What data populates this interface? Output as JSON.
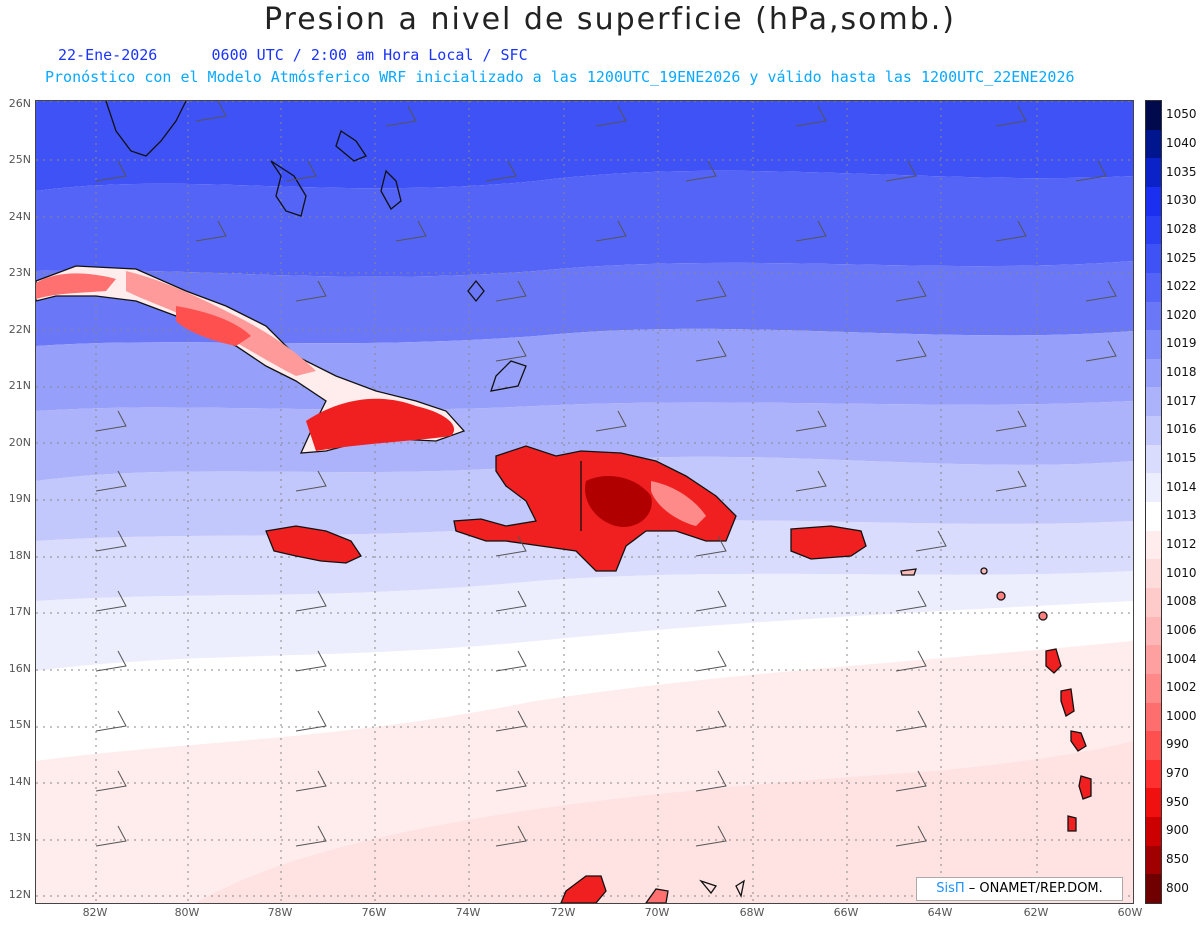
{
  "title": "Presion a nivel de superficie (hPa,somb.)",
  "subtitle_line1_date": "22-Ene-2026",
  "subtitle_line1_time": "0600 UTC / 2:00 am Hora Local / SFC",
  "subtitle_line2": "Pronóstico con el Modelo Atmósferico WRF inicializado a las 1200UTC_19ENE2026 y válido hasta las  1200UTC_22ENE2026",
  "lat_labels": [
    "26N",
    "25N",
    "24N",
    "23N",
    "22N",
    "21N",
    "20N",
    "19N",
    "18N",
    "17N",
    "16N",
    "15N",
    "14N",
    "13N",
    "12N"
  ],
  "lon_labels": [
    "82W",
    "80W",
    "78W",
    "76W",
    "74W",
    "72W",
    "70W",
    "68W",
    "66W",
    "64W",
    "62W",
    "60W"
  ],
  "legend": {
    "levels": [
      "1050",
      "1040",
      "1035",
      "1030",
      "1028",
      "1025",
      "1022",
      "1020",
      "1019",
      "1018",
      "1017",
      "1016",
      "1015",
      "1014",
      "1013",
      "1012",
      "1010",
      "1008",
      "1006",
      "1004",
      "1002",
      "1000",
      "990",
      "970",
      "950",
      "900",
      "850",
      "800"
    ],
    "colors": [
      "#000a4d",
      "#00168f",
      "#0a22c7",
      "#1a2ff0",
      "#2c40f3",
      "#3f52f5",
      "#5364f6",
      "#6a78f7",
      "#7f8bf8",
      "#96a0fa",
      "#acb3fb",
      "#c3c8fc",
      "#d9dcfd",
      "#eceefe",
      "#ffffff",
      "#ffecec",
      "#ffdcdc",
      "#ffcaca",
      "#ffb6b6",
      "#ffa0a0",
      "#ff8888",
      "#ff6e6e",
      "#ff5050",
      "#ff3030",
      "#f01010",
      "#cc0000",
      "#a00000",
      "#700000"
    ]
  },
  "credit": {
    "brand": "SisΠ",
    "text": "ONAMET/REP.DOM."
  }
}
